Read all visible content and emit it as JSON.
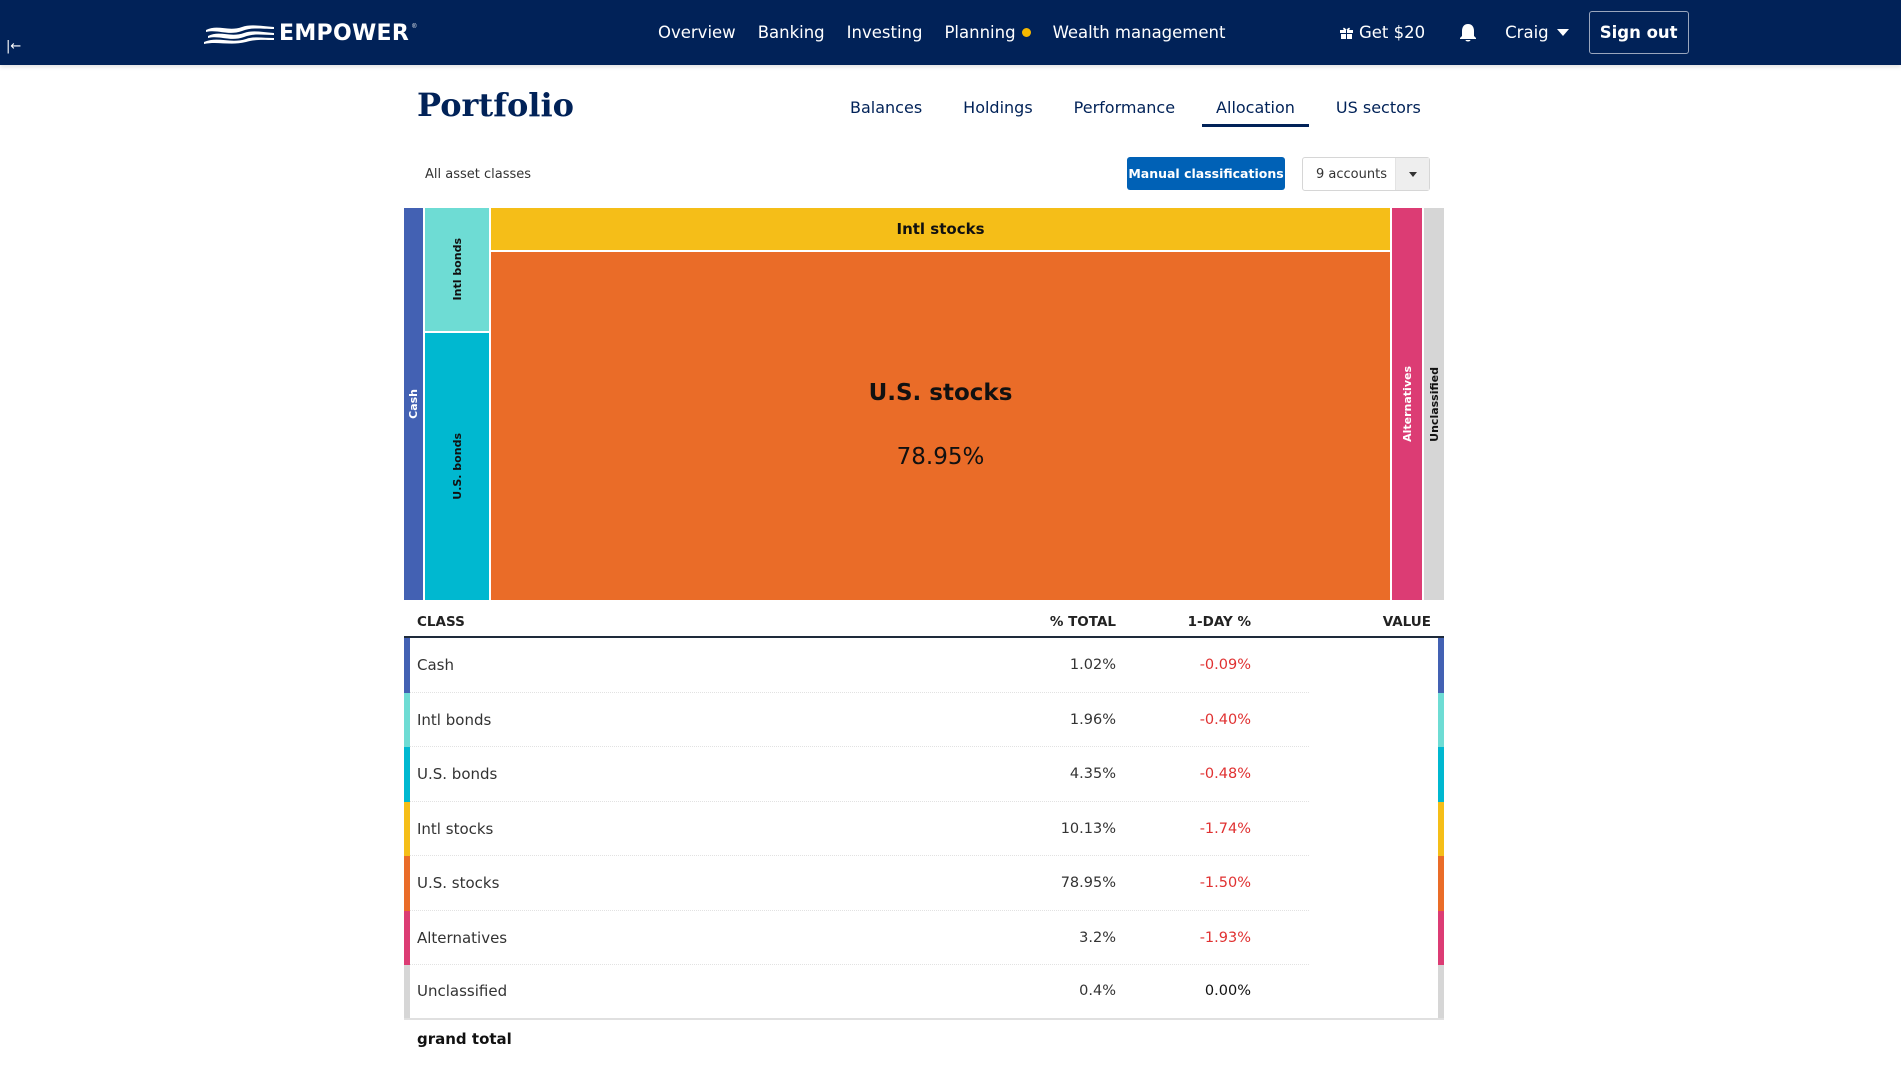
{
  "header": {
    "brand": "EMPOWER",
    "brand_mark": "®",
    "collapse_icon": "collapse-left-icon",
    "nav": [
      {
        "label": "Overview"
      },
      {
        "label": "Banking"
      },
      {
        "label": "Investing"
      },
      {
        "label": "Planning",
        "badge_color": "#f5b800"
      },
      {
        "label": "Wealth management"
      }
    ],
    "referral_label": "Get $20",
    "referral_icon": "gift-icon",
    "notifications_icon": "bell-icon",
    "user_name": "Craig",
    "sign_out_label": "Sign out"
  },
  "page": {
    "title": "Portfolio",
    "tabs": [
      {
        "label": "Balances",
        "active": false
      },
      {
        "label": "Holdings",
        "active": false
      },
      {
        "label": "Performance",
        "active": false
      },
      {
        "label": "Allocation",
        "active": true
      },
      {
        "label": "US sectors",
        "active": false
      }
    ],
    "filter_label": "All asset classes",
    "manual_button_label": "Manual classifications",
    "accounts_select_value": "9 accounts"
  },
  "treemap": {
    "highlight": {
      "name": "U.S. stocks",
      "pct": "78.95%"
    },
    "labels": {
      "cash": "Cash",
      "intl_bonds": "Intl bonds",
      "us_bonds": "U.S. bonds",
      "intl_stocks": "Intl stocks",
      "us_stocks": "U.S. stocks",
      "alternatives": "Alternatives",
      "unclassified": "Unclassified"
    }
  },
  "table": {
    "headers": {
      "class": "CLASS",
      "pct_total": "% TOTAL",
      "one_day": "1-DAY %",
      "value": "VALUE"
    },
    "rows": [
      {
        "class": "Cash",
        "pct_total": "1.02%",
        "one_day": "-0.09%",
        "color": "#4361b3",
        "day_color": "#e03131"
      },
      {
        "class": "Intl bonds",
        "pct_total": "1.96%",
        "one_day": "-0.40%",
        "color": "#6edcd4",
        "day_color": "#e03131"
      },
      {
        "class": "U.S. bonds",
        "pct_total": "4.35%",
        "one_day": "-0.48%",
        "color": "#00b8d0",
        "day_color": "#e03131"
      },
      {
        "class": "Intl stocks",
        "pct_total": "10.13%",
        "one_day": "-1.74%",
        "color": "#f5be18",
        "day_color": "#e03131"
      },
      {
        "class": "U.S. stocks",
        "pct_total": "78.95%",
        "one_day": "-1.50%",
        "color": "#ea6c28",
        "day_color": "#e03131"
      },
      {
        "class": "Alternatives",
        "pct_total": "3.2%",
        "one_day": "-1.93%",
        "color": "#dc3c74",
        "day_color": "#e03131"
      },
      {
        "class": "Unclassified",
        "pct_total": "0.4%",
        "one_day": "0.00%",
        "color": "#d6d6d6",
        "day_color": "#111111"
      }
    ],
    "grand_total_label": "grand total"
  },
  "colors": {
    "header_bg": "#012258",
    "primary_button": "#0061b6",
    "negative": "#e03131"
  }
}
